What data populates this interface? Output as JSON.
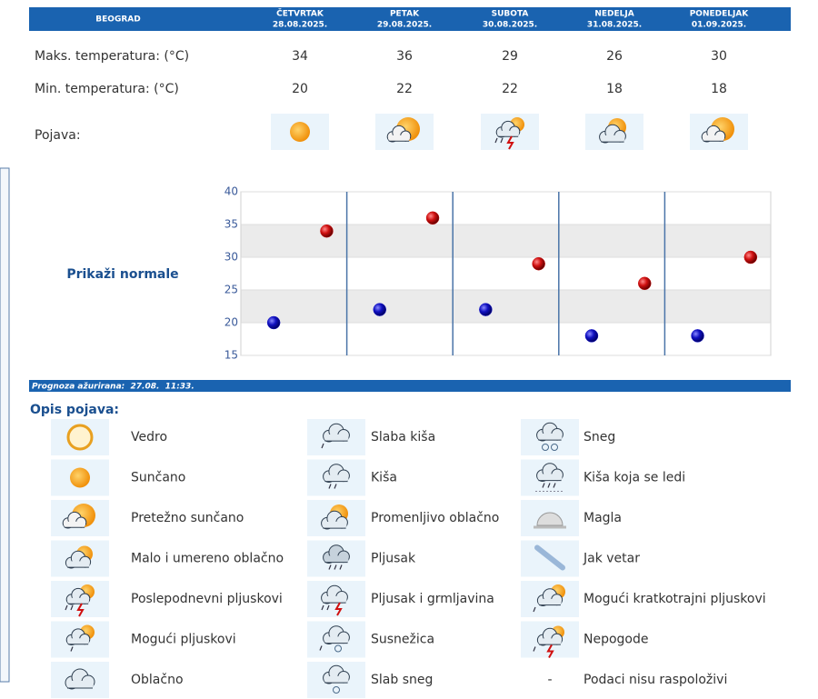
{
  "header": {
    "city": "BEOGRAD",
    "days": [
      {
        "name": "ČETVRTAK",
        "date": "28.08.2025."
      },
      {
        "name": "PETAK",
        "date": "29.08.2025."
      },
      {
        "name": "SUBOTA",
        "date": "30.08.2025."
      },
      {
        "name": "NEDELJA",
        "date": "31.08.2025."
      },
      {
        "name": "PONEDELJAK",
        "date": "01.09.2025."
      }
    ]
  },
  "forecast": {
    "max_label": "Maks. temperatura: (°C)",
    "max": [
      34,
      36,
      29,
      26,
      30
    ],
    "min_label": "Min. temperatura: (°C)",
    "min": [
      20,
      22,
      22,
      18,
      18
    ],
    "condition_label": "Pojava:"
  },
  "normals_link": "Prikaži normale",
  "chart_data": {
    "type": "scatter",
    "ylim": [
      15,
      40
    ],
    "yticks": [
      15,
      20,
      25,
      30,
      35,
      40
    ],
    "grid": true,
    "series": [
      {
        "color": "#1a1acc",
        "values": [
          20,
          22,
          22,
          18,
          18
        ]
      },
      {
        "color": "#cc1111",
        "values": [
          34,
          36,
          29,
          26,
          30
        ]
      }
    ]
  },
  "updated": "Prognoza ažurirana:  27.08.  11:33.",
  "legend": {
    "title": "Opis pojava:",
    "items": [
      "Vedro",
      "Sunčano",
      "Pretežno sunčano",
      "Malo i umereno oblačno",
      "Poslepodnevni pljuskovi",
      "Mogući pljuskovi",
      "Oblačno",
      "Slaba kiša",
      "Kiša",
      "Promenljivo oblačno",
      "Pljusak",
      "Pljusak i grmljavina",
      "Susnežica",
      "Slab sneg",
      "Sneg",
      "Kiša koja se ledi",
      "Magla",
      "Jak vetar",
      "Mogući kratkotrajni pljuskovi",
      "Nepogode",
      "Podaci nisu raspoloživi"
    ],
    "no_data_symbol": "-"
  }
}
